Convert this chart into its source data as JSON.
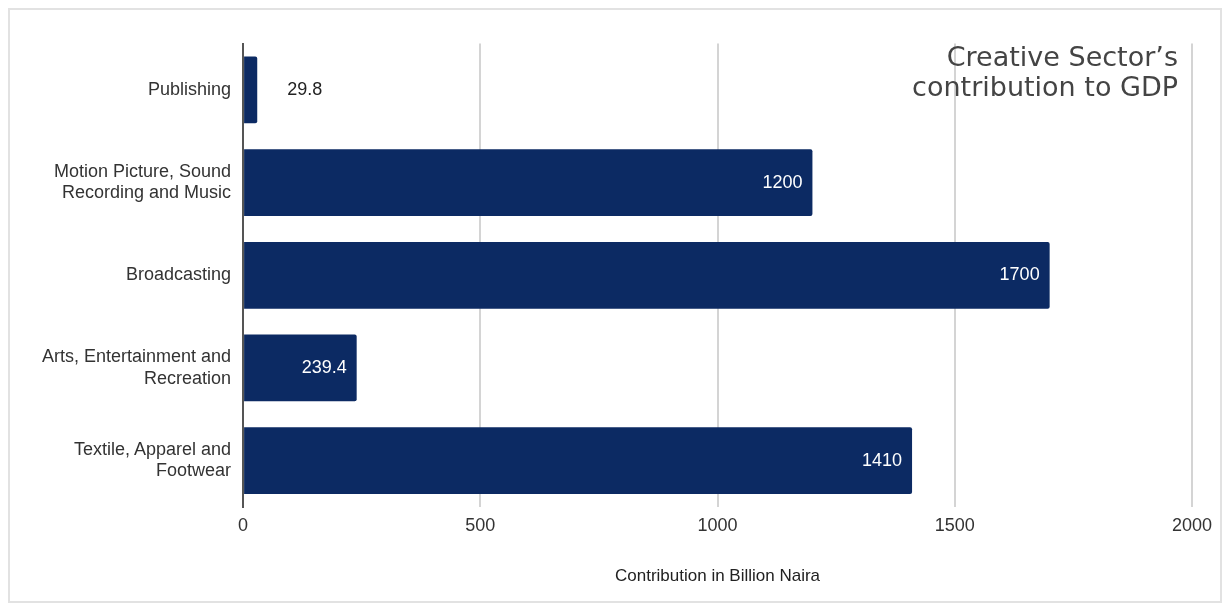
{
  "chart_data": {
    "type": "bar",
    "orientation": "horizontal",
    "title": "Creative Sector’s contribution to GDP",
    "xlabel": "Contribution in Billion Naira",
    "categories": [
      "Publishing",
      "Motion Picture, Sound Recording and Music",
      "Broadcasting",
      "Arts, Entertainment and Recreation",
      "Textile, Apparel and Footwear"
    ],
    "values": [
      29.8,
      1200,
      1700,
      239.4,
      1410
    ],
    "color": "#0c2a63",
    "xlim": [
      0,
      2000
    ],
    "xticks": [
      0,
      500,
      1000,
      1500,
      2000
    ],
    "grid": "x",
    "data_labels": true,
    "legend": false
  }
}
